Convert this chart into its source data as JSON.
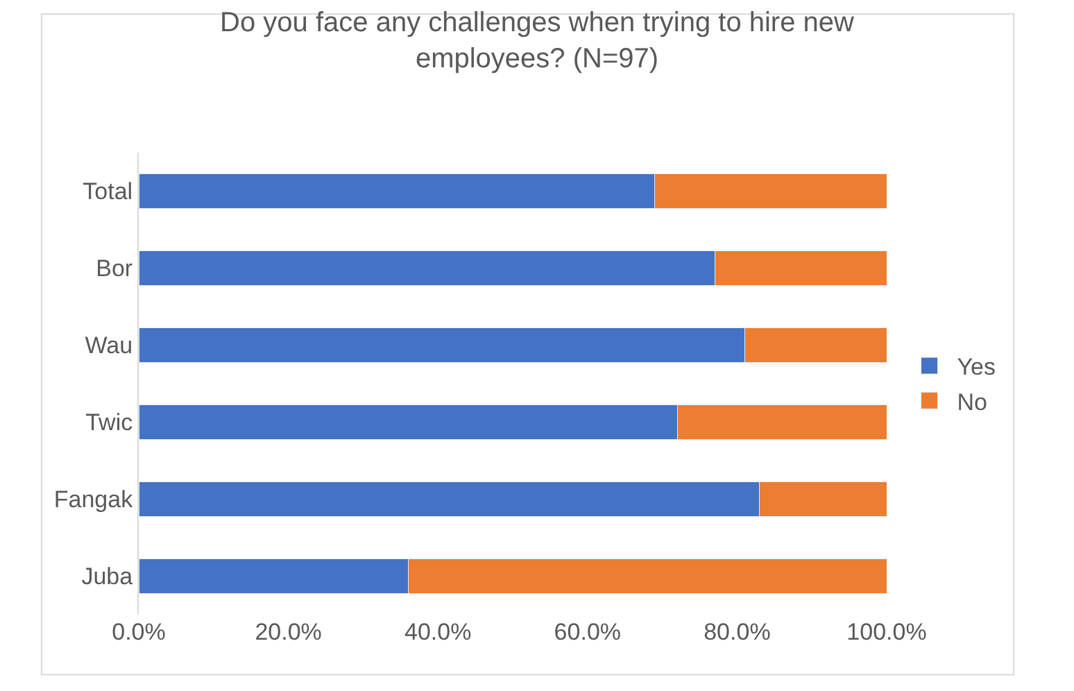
{
  "chart_data": {
    "type": "bar",
    "orientation": "horizontal",
    "stacked": true,
    "title": "Do you face any challenges when trying to hire new employees? (N=97)",
    "categories": [
      "Total",
      "Bor",
      "Wau",
      "Twic",
      "Fangak",
      "Juba"
    ],
    "series": [
      {
        "name": "Yes",
        "color": "#4472c4",
        "values": [
          69,
          77,
          81,
          72,
          83,
          36
        ]
      },
      {
        "name": "No",
        "color": "#ed7d31",
        "values": [
          31,
          23,
          19,
          28,
          17,
          64
        ]
      }
    ],
    "xlim": [
      0,
      100
    ],
    "xticks": [
      {
        "value": 0,
        "label": "0.0%"
      },
      {
        "value": 20,
        "label": "20.0%"
      },
      {
        "value": 40,
        "label": "40.0%"
      },
      {
        "value": 60,
        "label": "60.0%"
      },
      {
        "value": 80,
        "label": "80.0%"
      },
      {
        "value": 100,
        "label": "100.0%"
      }
    ],
    "legend": "right"
  }
}
